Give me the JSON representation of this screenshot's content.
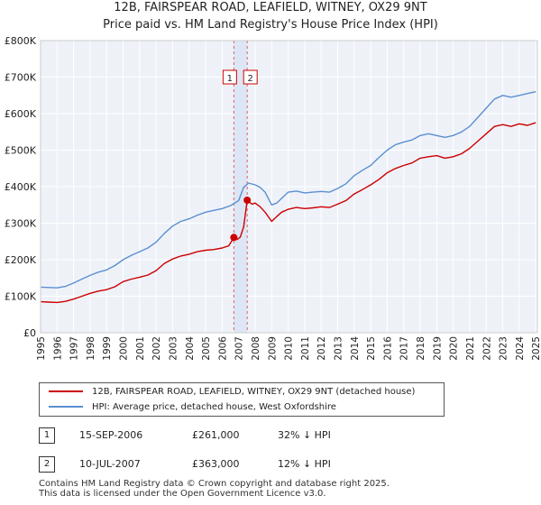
{
  "title": {
    "line1": "12B, FAIRSPEAR ROAD, LEAFIELD, WITNEY, OX29 9NT",
    "line2": "Price paid vs. HM Land Registry's House Price Index (HPI)"
  },
  "chart_data": {
    "type": "line",
    "xlim": [
      1995,
      2025.1
    ],
    "ylim": [
      0,
      800000
    ],
    "y_ticks": [
      {
        "value": 0,
        "label": "£0"
      },
      {
        "value": 100000,
        "label": "£100K"
      },
      {
        "value": 200000,
        "label": "£200K"
      },
      {
        "value": 300000,
        "label": "£300K"
      },
      {
        "value": 400000,
        "label": "£400K"
      },
      {
        "value": 500000,
        "label": "£500K"
      },
      {
        "value": 600000,
        "label": "£600K"
      },
      {
        "value": 700000,
        "label": "£700K"
      },
      {
        "value": 800000,
        "label": "£800K"
      }
    ],
    "x_ticks": [
      "1995",
      "1996",
      "1997",
      "1998",
      "1999",
      "2000",
      "2001",
      "2002",
      "2003",
      "2004",
      "2005",
      "2006",
      "2007",
      "2008",
      "2009",
      "2010",
      "2011",
      "2012",
      "2013",
      "2014",
      "2015",
      "2016",
      "2017",
      "2018",
      "2019",
      "2020",
      "2021",
      "2022",
      "2023",
      "2024",
      "2025"
    ],
    "grid": true,
    "series": [
      {
        "name": "12B, FAIRSPEAR ROAD, LEAFIELD, WITNEY, OX29 9NT (detached house)",
        "color": "#cc0000",
        "x": [
          1995,
          1995.5,
          1996,
          1996.5,
          1997,
          1997.5,
          1998,
          1998.5,
          1999,
          1999.5,
          2000,
          2000.5,
          2001,
          2001.5,
          2002,
          2002.5,
          2003,
          2003.5,
          2004,
          2004.5,
          2005,
          2005.5,
          2006,
          2006.4,
          2006.71,
          2006.9,
          2007.1,
          2007.3,
          2007.52,
          2007.8,
          2008,
          2008.3,
          2008.6,
          2009,
          2009.3,
          2009.6,
          2010,
          2010.5,
          2011,
          2011.5,
          2012,
          2012.5,
          2013,
          2013.5,
          2014,
          2014.5,
          2015,
          2015.5,
          2016,
          2016.5,
          2017,
          2017.5,
          2018,
          2018.5,
          2019,
          2019.5,
          2020,
          2020.5,
          2021,
          2021.5,
          2022,
          2022.5,
          2023,
          2023.5,
          2024,
          2024.5,
          2025
        ],
        "y": [
          85000,
          84000,
          83000,
          86000,
          92000,
          100000,
          108000,
          114000,
          118000,
          126000,
          140000,
          147000,
          152000,
          158000,
          170000,
          190000,
          202000,
          210000,
          215000,
          222000,
          226000,
          228000,
          232000,
          238000,
          261000,
          255000,
          262000,
          290000,
          363000,
          352000,
          355000,
          345000,
          330000,
          305000,
          318000,
          330000,
          338000,
          343000,
          340000,
          342000,
          345000,
          343000,
          352000,
          362000,
          380000,
          392000,
          405000,
          420000,
          438000,
          450000,
          458000,
          465000,
          478000,
          482000,
          485000,
          478000,
          482000,
          490000,
          505000,
          525000,
          545000,
          565000,
          570000,
          565000,
          572000,
          568000,
          575000
        ]
      },
      {
        "name": "HPI: Average price, detached house, West Oxfordshire",
        "color": "#5b8fd0",
        "x": [
          1995,
          1995.5,
          1996,
          1996.5,
          1997,
          1997.5,
          1998,
          1998.5,
          1999,
          1999.5,
          2000,
          2000.5,
          2001,
          2001.5,
          2002,
          2002.5,
          2003,
          2003.5,
          2004,
          2004.5,
          2005,
          2005.5,
          2006,
          2006.5,
          2007,
          2007.3,
          2007.6,
          2008,
          2008.3,
          2008.6,
          2009,
          2009.3,
          2009.6,
          2010,
          2010.5,
          2011,
          2011.5,
          2012,
          2012.5,
          2013,
          2013.5,
          2014,
          2014.5,
          2015,
          2015.5,
          2016,
          2016.5,
          2017,
          2017.5,
          2018,
          2018.5,
          2019,
          2019.5,
          2020,
          2020.5,
          2021,
          2021.5,
          2022,
          2022.5,
          2023,
          2023.5,
          2024,
          2024.5,
          2025
        ],
        "y": [
          125000,
          124000,
          123000,
          127000,
          136000,
          147000,
          157000,
          166000,
          172000,
          184000,
          200000,
          212000,
          222000,
          232000,
          248000,
          272000,
          292000,
          305000,
          312000,
          322000,
          330000,
          335000,
          340000,
          348000,
          362000,
          398000,
          410000,
          405000,
          398000,
          385000,
          350000,
          355000,
          368000,
          385000,
          388000,
          383000,
          385000,
          387000,
          385000,
          395000,
          408000,
          430000,
          445000,
          458000,
          480000,
          500000,
          515000,
          522000,
          528000,
          540000,
          545000,
          540000,
          535000,
          540000,
          550000,
          565000,
          590000,
          615000,
          640000,
          650000,
          645000,
          650000,
          655000,
          660000
        ]
      }
    ],
    "sales": [
      {
        "num": "1",
        "date": "15-SEP-2006",
        "x": 2006.71,
        "price": 261000,
        "price_label": "£261,000",
        "hpi": "32% ↓ HPI"
      },
      {
        "num": "2",
        "date": "10-JUL-2007",
        "x": 2007.52,
        "price": 363000,
        "price_label": "£363,000",
        "hpi": "12% ↓ HPI"
      }
    ],
    "legend": [
      {
        "label": "12B, FAIRSPEAR ROAD, LEAFIELD, WITNEY, OX29 9NT (detached house)",
        "color": "#cc0000"
      },
      {
        "label": "HPI: Average price, detached house, West Oxfordshire",
        "color": "#5b8fd0"
      }
    ]
  },
  "footer": {
    "line1": "Contains HM Land Registry data © Crown copyright and database right 2025.",
    "line2": "This data is licensed under the Open Government Licence v3.0."
  }
}
